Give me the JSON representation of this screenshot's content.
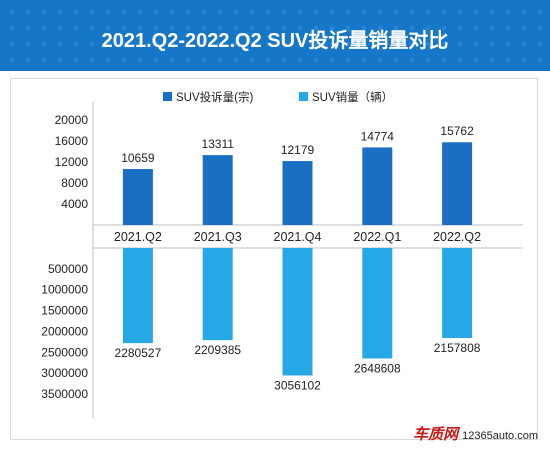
{
  "title": "2021.Q2-2022.Q2 SUV投诉量销量对比",
  "legend": [
    {
      "label": "SUV投诉量(宗)",
      "color": "#1a6fc4"
    },
    {
      "label": "SUV销量（辆）",
      "color": "#27a8e6"
    }
  ],
  "watermark": {
    "brand": "车质网",
    "url": "12365auto.com"
  },
  "chart_data": {
    "type": "bar",
    "categories": [
      "2021.Q2",
      "2021.Q3",
      "2021.Q4",
      "2022.Q1",
      "2022.Q2"
    ],
    "series": [
      {
        "name": "SUV投诉量(宗)",
        "values": [
          10659,
          13311,
          12179,
          14774,
          15762
        ],
        "color": "#1a6fc4"
      },
      {
        "name": "SUV销量（辆）",
        "values": [
          2280527,
          2209385,
          3056102,
          2648608,
          2157808
        ],
        "color": "#27a8e6"
      }
    ],
    "top_axis": {
      "ticks": [
        4000,
        8000,
        12000,
        16000,
        20000
      ],
      "min": 0,
      "max": 20000
    },
    "bottom_axis": {
      "ticks": [
        500000,
        1000000,
        1500000,
        2000000,
        2500000,
        3000000,
        3500000
      ],
      "min": 0,
      "max": 3500000
    }
  }
}
